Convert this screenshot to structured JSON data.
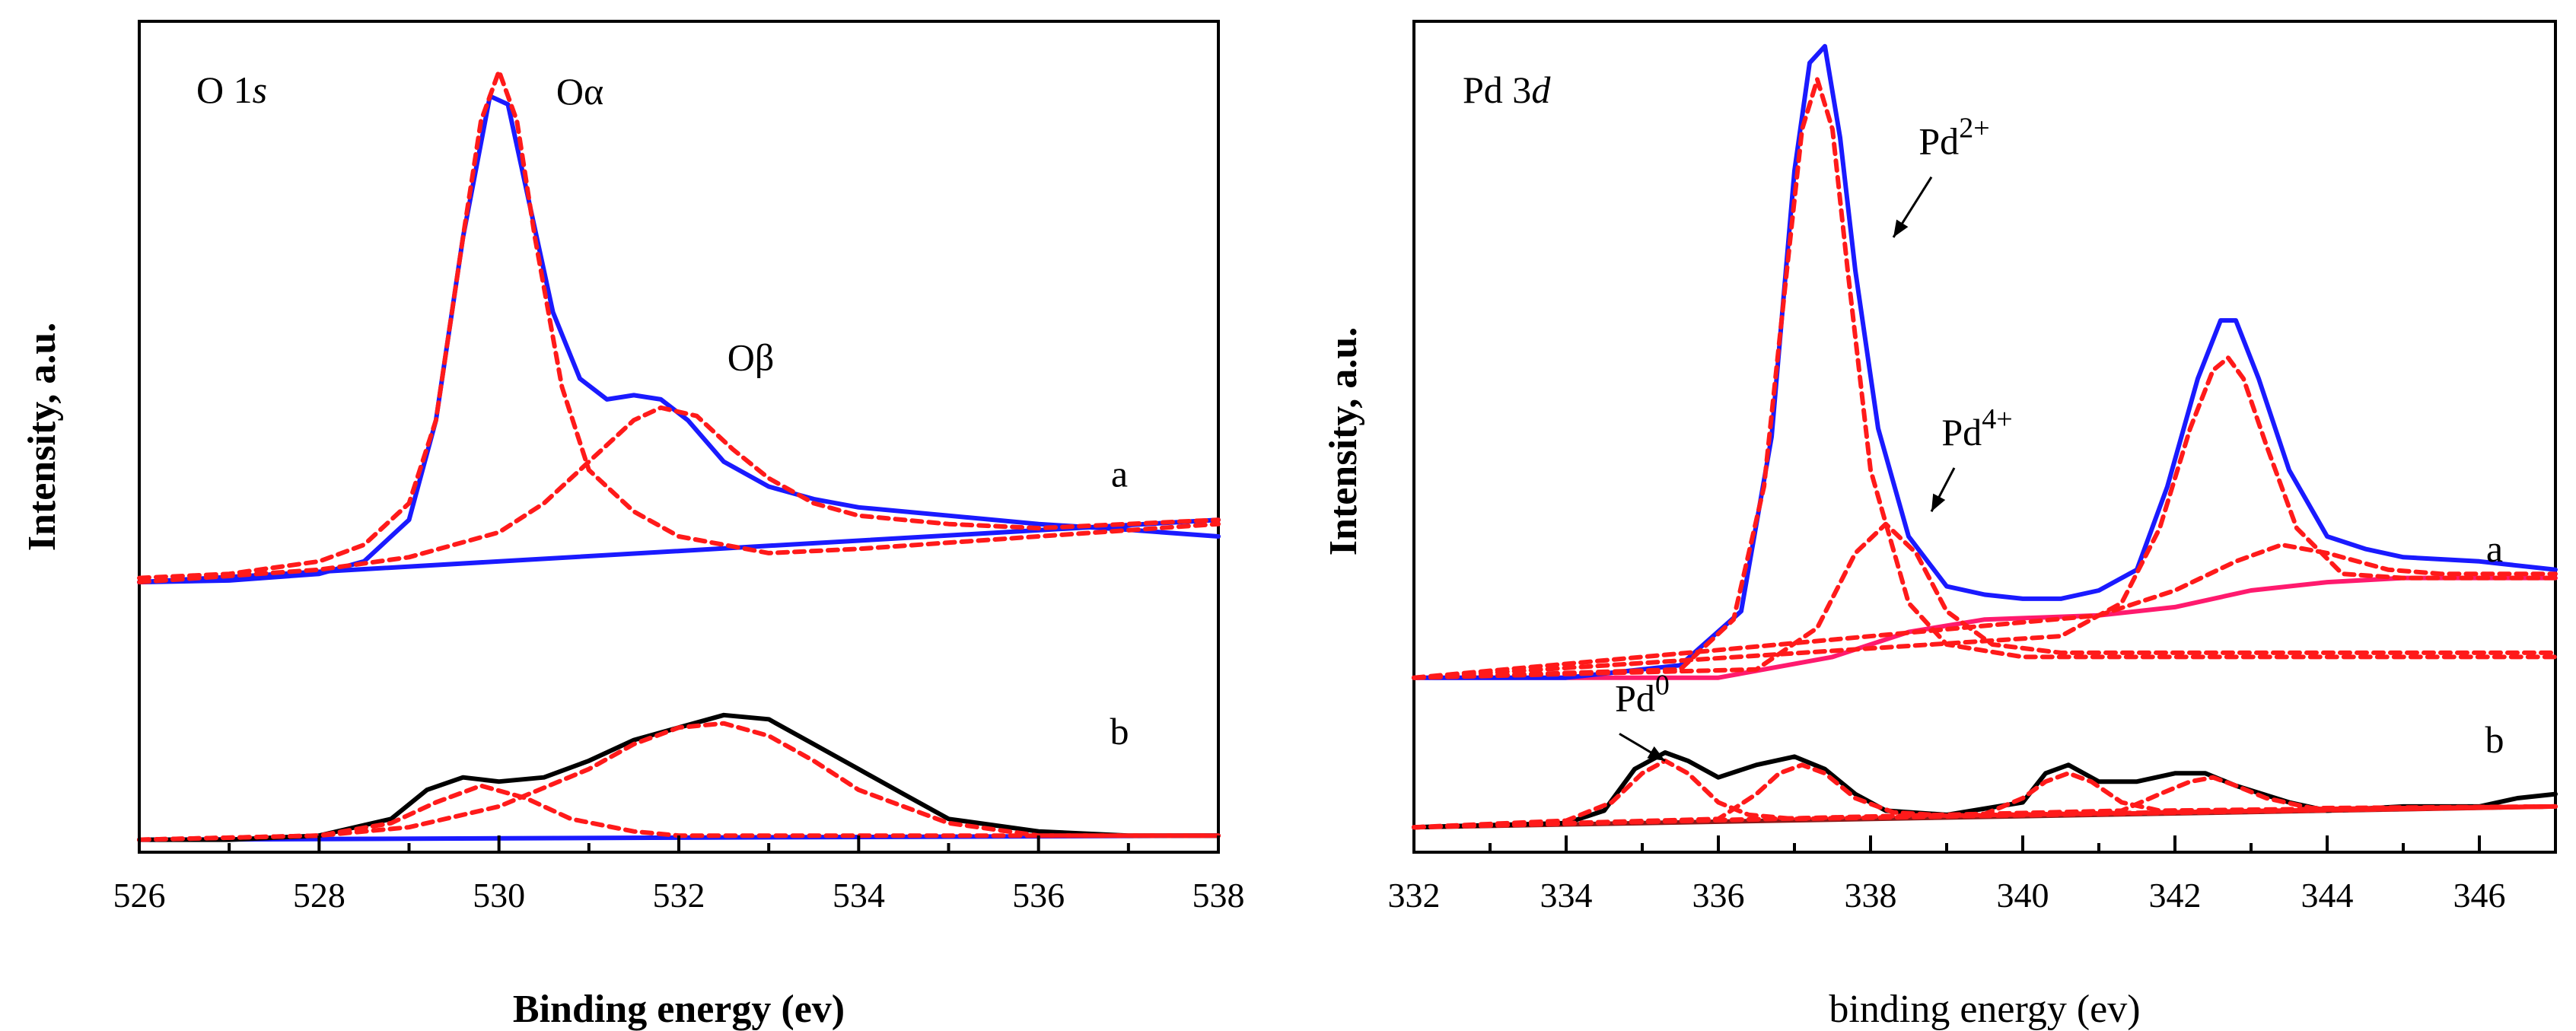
{
  "colors": {
    "spectrum_a": "#1a1aff",
    "spectrum_b": "#000000",
    "fit": "#ff1a1a",
    "background_a2": "#ff1a6e",
    "background_b2": "#8b1a1a",
    "axis": "#000000"
  },
  "chart_data": [
    {
      "type": "line",
      "panel_label": "O 1",
      "panel_label_italic": "s",
      "xlabel": "Binding energy (ev)",
      "ylabel": "Intensity, a.u.",
      "xlim": [
        526,
        538
      ],
      "ylim": [
        0,
        100
      ],
      "x_ticks": [
        "526",
        "528",
        "530",
        "532",
        "534",
        "536",
        "538"
      ],
      "grid": false,
      "annotations": [
        {
          "text": "Oα",
          "x": 530.9,
          "y": 90
        },
        {
          "text": "Oβ",
          "x": 532.8,
          "y": 58
        },
        {
          "text": "a",
          "x": 536.9,
          "y": 44
        },
        {
          "text": "b",
          "x": 536.9,
          "y": 13
        }
      ],
      "series": [
        {
          "name": "a",
          "role": "spectrum",
          "color": "#1a1aff",
          "style": "solid",
          "x": [
            526,
            527,
            528,
            528.5,
            529,
            529.3,
            529.6,
            529.9,
            530.1,
            530.3,
            530.6,
            530.9,
            531.2,
            531.5,
            531.8,
            532.1,
            532.5,
            533,
            533.5,
            534,
            535,
            536,
            537,
            538
          ],
          "y": [
            32.5,
            32.7,
            33.5,
            35,
            40,
            52,
            74,
            91,
            90,
            80,
            65,
            57,
            54.5,
            55,
            54.5,
            52,
            47,
            44,
            42.5,
            41.5,
            40.5,
            39.5,
            38.8,
            38
          ]
        },
        {
          "name": "a background",
          "role": "baseline",
          "color": "#1a1aff",
          "style": "solid",
          "x": [
            526,
            538
          ],
          "y": [
            32.5,
            40
          ]
        },
        {
          "name": "Oα fit",
          "role": "fit",
          "color": "#ff1a1a",
          "style": "dashed",
          "x": [
            526,
            527,
            528,
            528.5,
            529,
            529.3,
            529.6,
            529.8,
            530,
            530.2,
            530.4,
            530.7,
            531,
            531.5,
            532,
            533,
            534,
            536,
            538
          ],
          "y": [
            33,
            33.5,
            35,
            37,
            42,
            52,
            74,
            88,
            94,
            88,
            74,
            56,
            46,
            41,
            38,
            36,
            36.5,
            38,
            39.5
          ]
        },
        {
          "name": "Oβ fit",
          "role": "fit",
          "color": "#ff1a1a",
          "style": "dashed",
          "x": [
            526,
            528,
            529,
            530,
            530.5,
            531,
            531.5,
            531.8,
            532.2,
            532.6,
            533,
            533.5,
            534,
            535,
            536,
            538
          ],
          "y": [
            32.5,
            34,
            35.5,
            38.5,
            42,
            47,
            52,
            53.5,
            52.5,
            48.5,
            45,
            42,
            40.5,
            39.5,
            39,
            40
          ]
        },
        {
          "name": "b",
          "role": "spectrum",
          "color": "#000000",
          "style": "solid",
          "x": [
            526,
            527,
            528,
            528.8,
            529.2,
            529.6,
            530,
            530.5,
            531,
            531.5,
            532,
            532.5,
            533,
            533.5,
            534,
            534.5,
            535,
            536,
            537,
            538
          ],
          "y": [
            1.5,
            1.5,
            2,
            4,
            7.5,
            9,
            8.5,
            9,
            11,
            13.5,
            15,
            16.5,
            16,
            13,
            10,
            7,
            4,
            2.5,
            2,
            2
          ]
        },
        {
          "name": "b background",
          "role": "baseline",
          "color": "#1a1aff",
          "style": "solid",
          "x": [
            526,
            538
          ],
          "y": [
            1.5,
            2
          ]
        },
        {
          "name": "b fit 1",
          "role": "fit",
          "color": "#ff1a1a",
          "style": "dashed",
          "x": [
            526,
            528,
            528.8,
            529.3,
            529.8,
            530.3,
            530.8,
            531.5,
            532,
            538
          ],
          "y": [
            1.5,
            2,
            3.5,
            6,
            8,
            6.5,
            4,
            2.5,
            2,
            2
          ]
        },
        {
          "name": "b fit 2",
          "role": "fit",
          "color": "#ff1a1a",
          "style": "dashed",
          "x": [
            526,
            528,
            529,
            530,
            531,
            531.5,
            532,
            532.5,
            533,
            533.5,
            534,
            535,
            536,
            538
          ],
          "y": [
            1.5,
            2,
            3,
            5.5,
            10,
            13,
            15,
            15.5,
            14,
            11,
            7.5,
            3.5,
            2,
            2
          ]
        }
      ]
    },
    {
      "type": "line",
      "panel_label": "Pd 3",
      "panel_label_italic": "d",
      "xlabel": "binding energy (ev)",
      "ylabel": "Intensity, a.u.",
      "xlim": [
        332,
        347
      ],
      "ylim": [
        0,
        100
      ],
      "x_ticks": [
        "332",
        "334",
        "336",
        "338",
        "340",
        "342",
        "344",
        "346"
      ],
      "grid": false,
      "annotations": [
        {
          "text": "Pd",
          "sup": "2+",
          "x": 339.1,
          "y": 84,
          "arrow_to": [
            338.3,
            74
          ]
        },
        {
          "text": "Pd",
          "sup": "4+",
          "x": 339.4,
          "y": 49,
          "arrow_to": [
            338.8,
            41
          ]
        },
        {
          "text": "Pd",
          "sup": "0",
          "x": 335.0,
          "y": 17,
          "arrow_to": [
            335.3,
            11
          ]
        },
        {
          "text": "a",
          "x": 346.2,
          "y": 35
        },
        {
          "text": "b",
          "x": 346.2,
          "y": 12
        }
      ],
      "series": [
        {
          "name": "a",
          "role": "spectrum",
          "color": "#1a1aff",
          "style": "solid",
          "x": [
            332,
            334,
            335.5,
            336.3,
            336.7,
            337,
            337.2,
            337.4,
            337.6,
            337.8,
            338.1,
            338.5,
            339,
            339.5,
            340,
            340.5,
            341,
            341.5,
            341.9,
            342.3,
            342.6,
            342.8,
            343.1,
            343.5,
            344,
            344.5,
            345,
            346,
            347
          ],
          "y": [
            21,
            21,
            22.5,
            29,
            50,
            82,
            95,
            97,
            86,
            70,
            51,
            38,
            32,
            31,
            30.5,
            30.5,
            31.5,
            34,
            44,
            57,
            64,
            64,
            57,
            46,
            38,
            36.5,
            35.5,
            35,
            34
          ]
        },
        {
          "name": "a background",
          "role": "baseline",
          "color": "#ff1a6e",
          "style": "solid",
          "x": [
            332,
            336,
            337.5,
            338.5,
            339.5,
            341,
            342,
            343,
            344,
            345,
            347
          ],
          "y": [
            21,
            21,
            23.5,
            26.5,
            28,
            28.5,
            29.5,
            31.5,
            32.5,
            33,
            33
          ]
        },
        {
          "name": "Pd2+ 3d5/2 fit",
          "role": "fit",
          "color": "#ff1a1a",
          "style": "dashed",
          "x": [
            332,
            335.5,
            336.2,
            336.6,
            336.9,
            337.1,
            337.3,
            337.5,
            337.7,
            338,
            338.5,
            339,
            340,
            341,
            347
          ],
          "y": [
            21,
            22,
            28,
            44,
            70,
            87,
            93,
            87,
            70,
            46,
            30,
            25,
            23.5,
            23.5,
            23.5
          ]
        },
        {
          "name": "Pd4+ 3d5/2 fit",
          "role": "fit",
          "color": "#ff1a1a",
          "style": "dashed",
          "x": [
            332,
            336.5,
            337.3,
            337.8,
            338.2,
            338.6,
            339,
            339.6,
            340.5,
            347
          ],
          "y": [
            21,
            22,
            27,
            36,
            39.5,
            36,
            29,
            25,
            24,
            24
          ]
        },
        {
          "name": "Pd2+ 3d3/2 fit",
          "role": "fit",
          "color": "#ff1a1a",
          "style": "dashed",
          "x": [
            332,
            340.5,
            341.3,
            341.8,
            342.2,
            342.5,
            342.7,
            342.9,
            343.2,
            343.6,
            344.2,
            345,
            347
          ],
          "y": [
            21,
            26,
            30,
            39,
            51,
            58,
            59.5,
            57,
            49,
            39,
            33.5,
            33,
            33
          ]
        },
        {
          "name": "Pd4+ 3d3/2 fit",
          "role": "fit",
          "color": "#ff1a1a",
          "style": "dashed",
          "x": [
            332,
            341,
            342,
            342.8,
            343.4,
            344,
            344.8,
            345.5,
            347
          ],
          "y": [
            21,
            28.5,
            31.5,
            35,
            37,
            36,
            34,
            33.5,
            33.5
          ]
        },
        {
          "name": "b",
          "role": "spectrum",
          "color": "#000000",
          "style": "solid",
          "x": [
            332,
            334,
            334.5,
            334.9,
            335.3,
            335.6,
            336,
            336.5,
            337,
            337.4,
            337.8,
            338.2,
            339,
            340,
            340.3,
            340.6,
            341,
            341.5,
            342,
            342.4,
            342.8,
            343.5,
            344,
            345,
            346,
            346.5,
            347
          ],
          "y": [
            3,
            3.5,
            5,
            10,
            12,
            11,
            9,
            10.5,
            11.5,
            10,
            7,
            5,
            4.5,
            6,
            9.5,
            10.5,
            8.5,
            8.5,
            9.5,
            9.5,
            8,
            6,
            5,
            5.5,
            5.5,
            6.5,
            7
          ]
        },
        {
          "name": "b background",
          "role": "baseline",
          "color": "#8b1a1a",
          "style": "solid",
          "x": [
            332,
            347
          ],
          "y": [
            3,
            5.5
          ]
        },
        {
          "name": "Pd0 3d5/2 fit",
          "role": "fit",
          "color": "#ff1a1a",
          "style": "dashed",
          "x": [
            332,
            334,
            334.6,
            335,
            335.3,
            335.6,
            336,
            336.4,
            337,
            347
          ],
          "y": [
            3,
            3.8,
            6,
            9.5,
            11,
            9.5,
            6,
            4.5,
            4,
            5.5
          ]
        },
        {
          "name": "Pd2+ b 3d5/2 fit",
          "role": "fit",
          "color": "#ff1a1a",
          "style": "dashed",
          "x": [
            332,
            336,
            336.5,
            336.8,
            337.1,
            337.4,
            337.8,
            338.3,
            339,
            347
          ],
          "y": [
            3,
            4,
            7,
            9.5,
            10.5,
            9.5,
            6.5,
            4.8,
            4.4,
            5.5
          ]
        },
        {
          "name": "Pd0 3d3/2 fit",
          "role": "fit",
          "color": "#ff1a1a",
          "style": "dashed",
          "x": [
            332,
            339.5,
            340,
            340.3,
            340.6,
            340.9,
            341.3,
            341.8,
            347
          ],
          "y": [
            3,
            4.6,
            6.5,
            8.5,
            9.5,
            8.5,
            6,
            5,
            5.5
          ]
        },
        {
          "name": "Pd2+ b 3d3/2 fit",
          "role": "fit",
          "color": "#ff1a1a",
          "style": "dashed",
          "x": [
            332,
            341.3,
            341.8,
            342.2,
            342.5,
            342.8,
            343.2,
            343.8,
            347
          ],
          "y": [
            3,
            5,
            7,
            8.5,
            9,
            8,
            6.5,
            5.3,
            5.5
          ]
        }
      ]
    }
  ]
}
